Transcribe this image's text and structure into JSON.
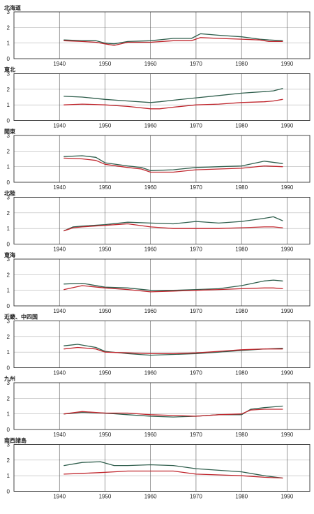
{
  "chart_data": [
    {
      "type": "line",
      "title": "北海道",
      "x": [
        1941,
        1945,
        1948,
        1950,
        1952,
        1955,
        1960,
        1965,
        1969,
        1971,
        1975,
        1980,
        1984,
        1986,
        1989
      ],
      "xlim": [
        1930,
        1995
      ],
      "ylim": [
        0,
        3
      ],
      "xticks": [
        "1940",
        "1950",
        "1960",
        "1970",
        "1980",
        "1990"
      ],
      "yticks": [
        "0",
        "1",
        "2",
        "3"
      ],
      "series": [
        {
          "color": "#2f5e4c",
          "values": [
            1.2,
            1.15,
            1.15,
            1.0,
            0.95,
            1.1,
            1.15,
            1.3,
            1.3,
            1.6,
            1.5,
            1.4,
            1.25,
            1.2,
            1.15
          ]
        },
        {
          "color": "#c0262d",
          "values": [
            1.15,
            1.1,
            1.05,
            0.95,
            0.85,
            1.05,
            1.05,
            1.15,
            1.15,
            1.35,
            1.3,
            1.25,
            1.2,
            1.1,
            1.1
          ]
        }
      ]
    },
    {
      "type": "line",
      "title": "東北",
      "x": [
        1941,
        1945,
        1950,
        1955,
        1960,
        1962,
        1965,
        1970,
        1975,
        1980,
        1985,
        1987,
        1989
      ],
      "xlim": [
        1930,
        1995
      ],
      "ylim": [
        0,
        3
      ],
      "xticks": [
        "1940",
        "1950",
        "1960",
        "1970",
        "1980",
        "1990"
      ],
      "yticks": [
        "0",
        "1",
        "2",
        "3"
      ],
      "series": [
        {
          "color": "#2f5e4c",
          "values": [
            1.55,
            1.5,
            1.35,
            1.25,
            1.15,
            1.2,
            1.3,
            1.45,
            1.6,
            1.75,
            1.85,
            1.9,
            2.05
          ]
        },
        {
          "color": "#c0262d",
          "values": [
            1.0,
            1.05,
            1.0,
            0.9,
            0.75,
            0.75,
            0.85,
            1.0,
            1.05,
            1.15,
            1.2,
            1.25,
            1.35
          ]
        }
      ]
    },
    {
      "type": "line",
      "title": "関東",
      "x": [
        1941,
        1945,
        1948,
        1950,
        1955,
        1958,
        1960,
        1965,
        1970,
        1975,
        1980,
        1985,
        1989
      ],
      "xlim": [
        1930,
        1995
      ],
      "ylim": [
        0,
        3
      ],
      "xticks": [
        "1940",
        "1950",
        "1960",
        "1970",
        "1980",
        "1990"
      ],
      "yticks": [
        "0",
        "1",
        "2",
        "3"
      ],
      "series": [
        {
          "color": "#2f5e4c",
          "values": [
            1.65,
            1.7,
            1.6,
            1.25,
            1.05,
            0.95,
            0.75,
            0.8,
            0.95,
            1.0,
            1.05,
            1.35,
            1.2
          ]
        },
        {
          "color": "#c0262d",
          "values": [
            1.55,
            1.5,
            1.4,
            1.15,
            0.95,
            0.85,
            0.65,
            0.65,
            0.8,
            0.85,
            0.9,
            1.05,
            1.0
          ]
        }
      ]
    },
    {
      "type": "line",
      "title": "北陸",
      "x": [
        1941,
        1943,
        1945,
        1950,
        1955,
        1960,
        1965,
        1970,
        1975,
        1980,
        1985,
        1987,
        1989
      ],
      "xlim": [
        1930,
        1995
      ],
      "ylim": [
        0,
        3
      ],
      "xticks": [
        "1940",
        "1950",
        "1960",
        "1970",
        "1980",
        "1990"
      ],
      "yticks": [
        "0",
        "1",
        "2",
        "3"
      ],
      "series": [
        {
          "color": "#2f5e4c",
          "values": [
            0.85,
            1.1,
            1.15,
            1.25,
            1.4,
            1.35,
            1.3,
            1.45,
            1.35,
            1.45,
            1.65,
            1.75,
            1.5
          ]
        },
        {
          "color": "#c0262d",
          "values": [
            0.85,
            1.05,
            1.1,
            1.2,
            1.3,
            1.1,
            1.0,
            1.0,
            1.0,
            1.05,
            1.1,
            1.1,
            1.05
          ]
        }
      ]
    },
    {
      "type": "line",
      "title": "東海",
      "x": [
        1941,
        1945,
        1950,
        1955,
        1960,
        1965,
        1970,
        1975,
        1980,
        1985,
        1987,
        1989
      ],
      "xlim": [
        1930,
        1995
      ],
      "ylim": [
        0,
        3
      ],
      "xticks": [
        "1940",
        "1950",
        "1960",
        "1970",
        "1980",
        "1990"
      ],
      "yticks": [
        "0",
        "1",
        "2",
        "3"
      ],
      "series": [
        {
          "color": "#2f5e4c",
          "values": [
            1.4,
            1.45,
            1.2,
            1.15,
            1.0,
            1.0,
            1.05,
            1.1,
            1.3,
            1.6,
            1.65,
            1.6
          ]
        },
        {
          "color": "#c0262d",
          "values": [
            1.05,
            1.3,
            1.15,
            1.05,
            0.9,
            0.95,
            1.0,
            1.05,
            1.1,
            1.15,
            1.15,
            1.1
          ]
        }
      ]
    },
    {
      "type": "line",
      "title": "近畿、中四国",
      "x": [
        1941,
        1944,
        1948,
        1950,
        1955,
        1960,
        1965,
        1970,
        1975,
        1980,
        1985,
        1989
      ],
      "xlim": [
        1930,
        1995
      ],
      "ylim": [
        0,
        3
      ],
      "xticks": [
        "1940",
        "1950",
        "1960",
        "1970",
        "1980",
        "1990"
      ],
      "yticks": [
        "0",
        "1",
        "2",
        "3"
      ],
      "series": [
        {
          "color": "#2f5e4c",
          "values": [
            1.4,
            1.5,
            1.3,
            1.05,
            0.9,
            0.8,
            0.85,
            0.9,
            1.0,
            1.1,
            1.2,
            1.25
          ]
        },
        {
          "color": "#c0262d",
          "values": [
            1.2,
            1.3,
            1.2,
            1.0,
            0.95,
            0.9,
            0.9,
            0.95,
            1.05,
            1.15,
            1.2,
            1.2
          ]
        }
      ]
    },
    {
      "type": "line",
      "title": "九州",
      "x": [
        1941,
        1945,
        1950,
        1955,
        1960,
        1965,
        1970,
        1975,
        1980,
        1982,
        1985,
        1989
      ],
      "xlim": [
        1930,
        1995
      ],
      "ylim": [
        0,
        3
      ],
      "xticks": [
        "1940",
        "1950",
        "1960",
        "1970",
        "1980",
        "1990"
      ],
      "yticks": [
        "0",
        "1",
        "2",
        "3"
      ],
      "series": [
        {
          "color": "#2f5e4c",
          "values": [
            1.0,
            1.1,
            1.05,
            0.95,
            0.85,
            0.8,
            0.85,
            0.95,
            0.95,
            1.3,
            1.4,
            1.5
          ]
        },
        {
          "color": "#c0262d",
          "values": [
            1.0,
            1.15,
            1.05,
            1.05,
            0.95,
            0.9,
            0.85,
            0.95,
            1.0,
            1.25,
            1.3,
            1.3
          ]
        }
      ]
    },
    {
      "type": "line",
      "title": "南西諸島",
      "x": [
        1941,
        1945,
        1949,
        1952,
        1955,
        1960,
        1965,
        1970,
        1975,
        1980,
        1985,
        1989
      ],
      "xlim": [
        1930,
        1995
      ],
      "ylim": [
        0,
        3
      ],
      "xticks": [
        "1940",
        "1950",
        "1960",
        "1970",
        "1980",
        "1990"
      ],
      "yticks": [
        "0",
        "1",
        "2",
        "3"
      ],
      "series": [
        {
          "color": "#2f5e4c",
          "values": [
            1.65,
            1.85,
            1.9,
            1.65,
            1.65,
            1.7,
            1.65,
            1.45,
            1.35,
            1.25,
            1.0,
            0.85
          ]
        },
        {
          "color": "#c0262d",
          "values": [
            1.1,
            1.15,
            1.2,
            1.25,
            1.3,
            1.3,
            1.3,
            1.1,
            1.05,
            1.0,
            0.9,
            0.85
          ]
        }
      ]
    }
  ]
}
